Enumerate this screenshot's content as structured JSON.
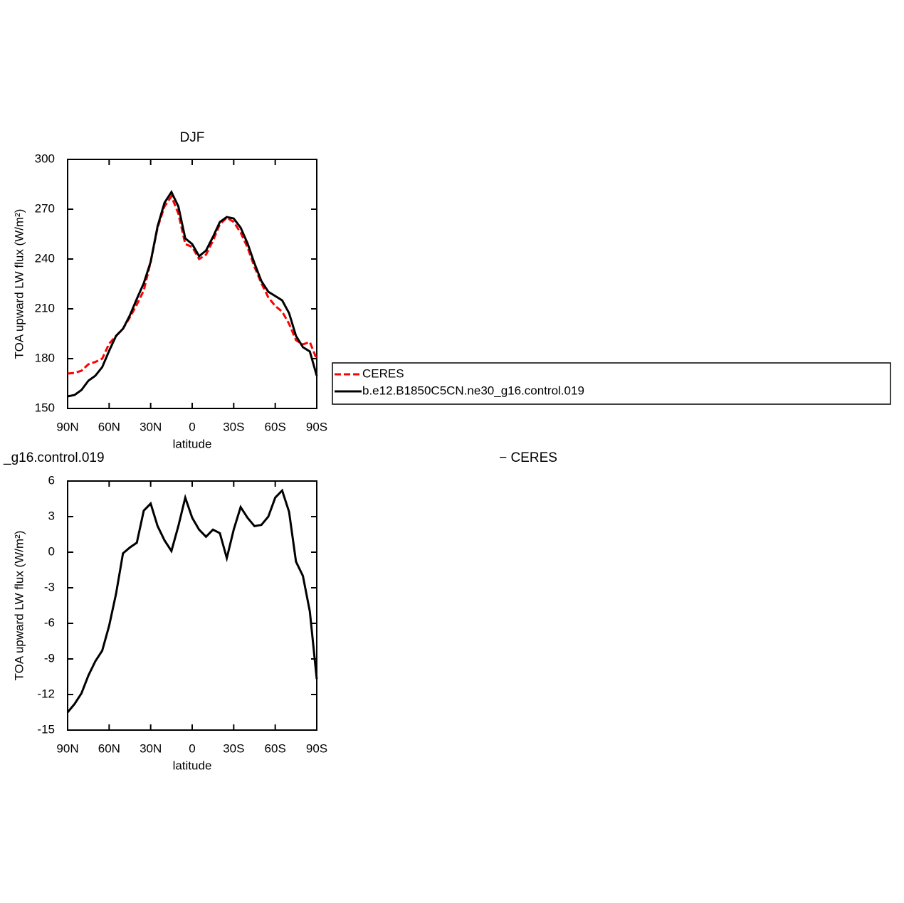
{
  "chart_data": [
    {
      "type": "line",
      "title": "DJF",
      "xlabel": "latitude",
      "ylabel": "TOA upward LW flux (W/m²)",
      "x": [
        90,
        85,
        80,
        75,
        70,
        65,
        60,
        55,
        50,
        45,
        40,
        35,
        30,
        25,
        20,
        15,
        10,
        5,
        0,
        -5,
        -10,
        -15,
        -20,
        -25,
        -30,
        -35,
        -40,
        -45,
        -50,
        -55,
        -60,
        -65,
        -70,
        -75,
        -80,
        -85,
        -90
      ],
      "xlim": [
        90,
        -90
      ],
      "xticks": [
        {
          "value": 90,
          "label": "90N"
        },
        {
          "value": 60,
          "label": "60N"
        },
        {
          "value": 30,
          "label": "30N"
        },
        0,
        {
          "value": -30,
          "label": "30S"
        },
        {
          "value": -60,
          "label": "60S"
        },
        {
          "value": -90,
          "label": "90S"
        }
      ],
      "ylim": [
        150,
        300
      ],
      "yticks": [
        150,
        180,
        210,
        240,
        270,
        300
      ],
      "series": [
        {
          "name": "CERES",
          "color": "#ff0000",
          "dashed": true,
          "values": [
            171,
            171.4,
            172.7,
            176.6,
            178,
            180,
            189,
            193.7,
            198,
            204.9,
            212.6,
            221,
            238.3,
            258.9,
            271.7,
            277.7,
            267.4,
            249,
            247.3,
            240,
            242.6,
            251,
            261,
            264.9,
            262.3,
            255.9,
            246.9,
            235.3,
            225.4,
            216.9,
            211.7,
            208.3,
            201,
            191.1,
            188.6,
            190,
            179.6
          ]
        },
        {
          "name": "b.e12.B1850C5CN.ne30_g16.control.019",
          "color": "#000000",
          "dashed": false,
          "values": [
            157.3,
            158.1,
            161.1,
            166.7,
            169.7,
            174.9,
            184.7,
            193.7,
            198,
            206.1,
            216,
            225.4,
            238.3,
            259.7,
            273.9,
            280.3,
            271.7,
            252.4,
            249,
            241.7,
            245.1,
            253.3,
            262.3,
            265.3,
            264.4,
            258.9,
            249.4,
            237.4,
            226.7,
            220.3,
            217.7,
            215.1,
            207.4,
            193.7,
            186.9,
            184.3,
            169.7
          ]
        }
      ]
    },
    {
      "type": "line",
      "title_left": "_g16.control.019",
      "title_right": "− CERES",
      "xlabel": "latitude",
      "ylabel": "TOA upward LW flux (W/m²)",
      "x": [
        90,
        85,
        80,
        75,
        70,
        65,
        60,
        55,
        50,
        45,
        40,
        35,
        30,
        25,
        20,
        15,
        10,
        5,
        0,
        -5,
        -10,
        -15,
        -20,
        -25,
        -30,
        -35,
        -40,
        -45,
        -50,
        -55,
        -60,
        -65,
        -70,
        -75,
        -80,
        -85,
        -90
      ],
      "xlim": [
        90,
        -90
      ],
      "xticks": [
        {
          "value": 90,
          "label": "90N"
        },
        {
          "value": 60,
          "label": "60N"
        },
        {
          "value": 30,
          "label": "30N"
        },
        0,
        {
          "value": -30,
          "label": "30S"
        },
        {
          "value": -60,
          "label": "60S"
        },
        {
          "value": -90,
          "label": "90S"
        }
      ],
      "ylim": [
        -15,
        6
      ],
      "yticks": [
        -15,
        -12,
        -9,
        -6,
        -3,
        0,
        3,
        6
      ],
      "color": "#000000",
      "values": [
        -13.5,
        -12.8,
        -11.9,
        -10.4,
        -9.2,
        -8.3,
        -6.2,
        -3.5,
        -0.1,
        0.4,
        0.8,
        3.5,
        4.1,
        2.2,
        1,
        0.1,
        2.2,
        4.6,
        2.9,
        1.9,
        1.3,
        1.9,
        1.6,
        -0.5,
        1.9,
        3.8,
        2.9,
        2.2,
        2.3,
        3,
        4.6,
        5.2,
        3.4,
        -0.8,
        -2,
        -5,
        -10.7
      ]
    }
  ]
}
